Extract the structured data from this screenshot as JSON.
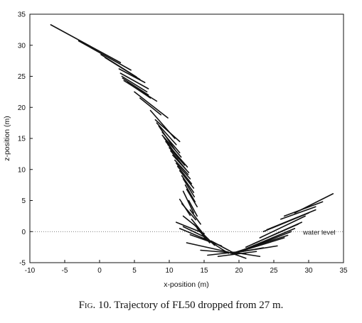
{
  "caption": {
    "fig_label": "Fig. 10.",
    "text": "Trajectory of FL50 dropped from 27 m."
  },
  "chart_data": {
    "type": "line",
    "xlabel": "x-position (m)",
    "ylabel": "z-position (m)",
    "xlim": [
      -10,
      35
    ],
    "ylim": [
      -5,
      35
    ],
    "xticks": [
      -10,
      -5,
      0,
      5,
      10,
      15,
      20,
      25,
      30,
      35
    ],
    "yticks": [
      -5,
      0,
      5,
      10,
      15,
      20,
      25,
      30,
      35
    ],
    "grid": false,
    "annotations": [
      {
        "text": "water level",
        "x": 29.2,
        "y": 0
      }
    ],
    "reference_line": {
      "y": 0,
      "style": "dotted"
    },
    "segments": [
      [
        [
          -7.0,
          33.3
        ],
        [
          3.0,
          27.2
        ]
      ],
      [
        [
          -3.0,
          30.7
        ],
        [
          4.5,
          26.0
        ]
      ],
      [
        [
          0.2,
          28.5
        ],
        [
          5.3,
          24.9
        ]
      ],
      [
        [
          0.8,
          28.0
        ],
        [
          5.8,
          24.5
        ]
      ],
      [
        [
          2.8,
          26.2
        ],
        [
          6.5,
          24.0
        ]
      ],
      [
        [
          3.0,
          25.5
        ],
        [
          7.0,
          23.0
        ]
      ],
      [
        [
          3.2,
          25.0
        ],
        [
          6.8,
          22.5
        ]
      ],
      [
        [
          3.3,
          24.7
        ],
        [
          7.0,
          22.0
        ]
      ],
      [
        [
          3.5,
          24.3
        ],
        [
          8.2,
          21.0
        ]
      ],
      [
        [
          4.0,
          24.0
        ],
        [
          7.3,
          21.5
        ]
      ],
      [
        [
          5.0,
          22.5
        ],
        [
          9.8,
          18.3
        ]
      ],
      [
        [
          5.8,
          21.5
        ],
        [
          8.8,
          18.8
        ]
      ],
      [
        [
          7.3,
          19.5
        ],
        [
          10.8,
          15.0
        ]
      ],
      [
        [
          8.0,
          18.0
        ],
        [
          11.5,
          14.5
        ]
      ],
      [
        [
          8.2,
          17.5
        ],
        [
          11.0,
          14.0
        ]
      ],
      [
        [
          8.5,
          17.0
        ],
        [
          10.8,
          13.2
        ]
      ],
      [
        [
          9.0,
          16.0
        ],
        [
          11.5,
          12.7
        ]
      ],
      [
        [
          9.0,
          15.5
        ],
        [
          11.7,
          12.0
        ]
      ],
      [
        [
          9.2,
          15.2
        ],
        [
          11.3,
          11.8
        ]
      ],
      [
        [
          9.5,
          14.5
        ],
        [
          12.0,
          11.0
        ]
      ],
      [
        [
          9.8,
          14.0
        ],
        [
          12.6,
          10.4
        ]
      ],
      [
        [
          10.0,
          13.5
        ],
        [
          12.2,
          10.7
        ]
      ],
      [
        [
          10.2,
          13.0
        ],
        [
          12.4,
          10.0
        ]
      ],
      [
        [
          10.5,
          12.3
        ],
        [
          12.8,
          9.5
        ]
      ],
      [
        [
          10.8,
          11.5
        ],
        [
          12.7,
          9.2
        ]
      ],
      [
        [
          11.0,
          11.0
        ],
        [
          13.0,
          8.5
        ]
      ],
      [
        [
          11.2,
          10.5
        ],
        [
          13.2,
          7.7
        ]
      ],
      [
        [
          11.5,
          9.8
        ],
        [
          13.5,
          7.0
        ]
      ],
      [
        [
          11.8,
          9.0
        ],
        [
          13.5,
          6.3
        ]
      ],
      [
        [
          12.0,
          8.5
        ],
        [
          13.6,
          5.6
        ]
      ],
      [
        [
          12.3,
          7.5
        ],
        [
          13.7,
          4.8
        ]
      ],
      [
        [
          12.5,
          6.8
        ],
        [
          14.0,
          4.0
        ]
      ],
      [
        [
          12.0,
          6.5
        ],
        [
          13.5,
          3.0
        ]
      ],
      [
        [
          11.5,
          5.2
        ],
        [
          13.0,
          2.6
        ]
      ],
      [
        [
          12.8,
          5.0
        ],
        [
          14.0,
          2.5
        ]
      ],
      [
        [
          11.8,
          4.5
        ],
        [
          13.8,
          1.9
        ]
      ],
      [
        [
          13.0,
          3.5
        ],
        [
          14.5,
          1.2
        ]
      ],
      [
        [
          12.0,
          2.5
        ],
        [
          14.0,
          0.7
        ]
      ],
      [
        [
          13.2,
          2.0
        ],
        [
          15.0,
          -0.5
        ]
      ],
      [
        [
          11.0,
          1.5
        ],
        [
          15.0,
          -0.3
        ]
      ],
      [
        [
          13.5,
          1.2
        ],
        [
          15.2,
          -0.8
        ]
      ],
      [
        [
          12.0,
          0.8
        ],
        [
          15.5,
          -1.1
        ]
      ],
      [
        [
          11.5,
          0.5
        ],
        [
          15.8,
          -1.5
        ]
      ],
      [
        [
          14.0,
          0.5
        ],
        [
          15.8,
          -1.8
        ]
      ],
      [
        [
          14.5,
          0.0
        ],
        [
          16.5,
          -2.2
        ]
      ],
      [
        [
          13.0,
          -0.5
        ],
        [
          17.5,
          -2.3
        ]
      ],
      [
        [
          15.0,
          -1.0
        ],
        [
          18.5,
          -3.5
        ]
      ],
      [
        [
          12.5,
          -1.8
        ],
        [
          18.5,
          -3.3
        ]
      ],
      [
        [
          16.0,
          -1.5
        ],
        [
          19.5,
          -3.6
        ]
      ],
      [
        [
          14.5,
          -3.0
        ],
        [
          21.0,
          -3.6
        ]
      ],
      [
        [
          15.5,
          -3.8
        ],
        [
          19.5,
          -3.3
        ]
      ],
      [
        [
          17.0,
          -4.0
        ],
        [
          22.5,
          -3.2
        ]
      ],
      [
        [
          19.0,
          -3.5
        ],
        [
          21.0,
          -4.3
        ]
      ],
      [
        [
          19.0,
          -3.3
        ],
        [
          23.0,
          -4.0
        ]
      ],
      [
        [
          19.0,
          -3.5
        ],
        [
          23.5,
          -2.6
        ]
      ],
      [
        [
          18.8,
          -3.5
        ],
        [
          25.5,
          -2.3
        ]
      ],
      [
        [
          19.0,
          -3.6
        ],
        [
          26.5,
          -1.0
        ]
      ],
      [
        [
          19.0,
          -3.5
        ],
        [
          27.0,
          -0.6
        ]
      ],
      [
        [
          19.5,
          -3.5
        ],
        [
          27.5,
          0.0
        ]
      ],
      [
        [
          20.5,
          -3.0
        ],
        [
          28.0,
          0.5
        ]
      ],
      [
        [
          21.0,
          -2.5
        ],
        [
          28.5,
          1.2
        ]
      ],
      [
        [
          22.0,
          -2.0
        ],
        [
          29.0,
          1.5
        ]
      ],
      [
        [
          23.0,
          -1.0
        ],
        [
          29.5,
          2.5
        ]
      ],
      [
        [
          23.5,
          0.0
        ],
        [
          30.0,
          3.0
        ]
      ],
      [
        [
          24.0,
          0.3
        ],
        [
          31.0,
          3.5
        ]
      ],
      [
        [
          26.0,
          2.0
        ],
        [
          31.0,
          4.0
        ]
      ],
      [
        [
          26.5,
          2.5
        ],
        [
          32.0,
          4.8
        ]
      ],
      [
        [
          28.0,
          3.0
        ],
        [
          33.5,
          6.1
        ]
      ]
    ]
  }
}
